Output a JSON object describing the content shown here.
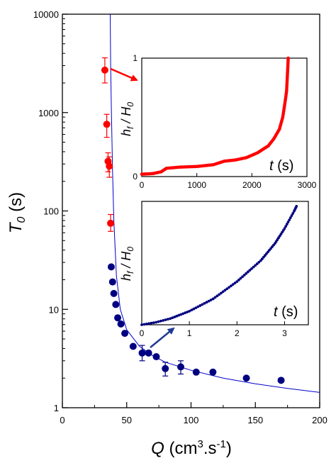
{
  "chart_data": [
    {
      "type": "scatter",
      "xlabel": {
        "main": "Q",
        "unit_pre": "(cm",
        "sup1": "3",
        "unit_mid": ".s",
        "sup2": "-1",
        "unit_post": ")"
      },
      "ylabel": {
        "main": "T",
        "sub": "0",
        "unit": "(s)"
      },
      "y_scale": "log",
      "xlim": [
        0,
        200
      ],
      "ylim": [
        1,
        10000
      ],
      "x_ticks": [
        "0",
        "50",
        "100",
        "150",
        "200"
      ],
      "y_ticks": [
        "1",
        "10",
        "100",
        "1000",
        "10000"
      ],
      "grid": false,
      "series": [
        {
          "color": "#ff0000",
          "points": [
            {
              "x": 33,
              "y": 2700,
              "err_lo": 2000,
              "err_hi": 3600
            },
            {
              "x": 34.5,
              "y": 760,
              "err_lo": 560,
              "err_hi": 960
            },
            {
              "x": 35.5,
              "y": 320,
              "err_lo": 250,
              "err_hi": 390
            },
            {
              "x": 36.5,
              "y": 285,
              "err_lo": 220,
              "err_hi": 355
            },
            {
              "x": 37.5,
              "y": 75,
              "err_lo": 62,
              "err_hi": 92
            }
          ]
        },
        {
          "color": "#000080",
          "points": [
            {
              "x": 38,
              "y": 27
            },
            {
              "x": 39,
              "y": 19
            },
            {
              "x": 40,
              "y": 14.5
            },
            {
              "x": 41.5,
              "y": 11.2
            },
            {
              "x": 43,
              "y": 8.2
            },
            {
              "x": 45.5,
              "y": 7.1
            },
            {
              "x": 48.5,
              "y": 5.7
            },
            {
              "x": 55,
              "y": 4.2
            },
            {
              "x": 62,
              "y": 3.6,
              "err_lo": 3.0,
              "err_hi": 4.3
            },
            {
              "x": 67,
              "y": 3.6
            },
            {
              "x": 73,
              "y": 3.3
            },
            {
              "x": 80,
              "y": 2.5,
              "err_lo": 2.1,
              "err_hi": 2.9
            },
            {
              "x": 92,
              "y": 2.6,
              "err_lo": 2.2,
              "err_hi": 3.0
            },
            {
              "x": 104,
              "y": 2.3
            },
            {
              "x": 117,
              "y": 2.3
            },
            {
              "x": 143,
              "y": 2.0
            },
            {
              "x": 170,
              "y": 1.9
            }
          ]
        }
      ],
      "fit_curve": {
        "color": "#0000cc",
        "points": [
          [
            37.2,
            10000
          ],
          [
            37.5,
            3000
          ],
          [
            38,
            1200
          ],
          [
            39,
            250
          ],
          [
            40,
            80
          ],
          [
            42,
            22
          ],
          [
            45,
            10
          ],
          [
            50,
            6.2
          ],
          [
            60,
            4.2
          ],
          [
            70,
            3.4
          ],
          [
            80,
            2.9
          ],
          [
            100,
            2.4
          ],
          [
            125,
            2.0
          ],
          [
            150,
            1.75
          ],
          [
            175,
            1.57
          ],
          [
            200,
            1.43
          ]
        ]
      }
    },
    {
      "type": "scatter",
      "ylabel": {
        "main": "h",
        "sub": "f",
        "mid": " / H",
        "sub2": "0"
      },
      "xlabel": {
        "main": "t",
        "unit": "(s)"
      },
      "xlim": [
        0,
        3000
      ],
      "ylim": [
        0,
        1
      ],
      "x_ticks": [
        "0",
        "1000",
        "2000",
        "3000"
      ],
      "y_ticks": [
        "0",
        "1"
      ],
      "color": "#ff0000",
      "curve": [
        [
          0,
          0.02
        ],
        [
          200,
          0.025
        ],
        [
          350,
          0.04
        ],
        [
          450,
          0.07
        ],
        [
          700,
          0.08
        ],
        [
          1000,
          0.085
        ],
        [
          1300,
          0.1
        ],
        [
          1500,
          0.13
        ],
        [
          1700,
          0.14
        ],
        [
          1900,
          0.16
        ],
        [
          2100,
          0.2
        ],
        [
          2200,
          0.23
        ],
        [
          2300,
          0.26
        ],
        [
          2400,
          0.32
        ],
        [
          2500,
          0.4
        ],
        [
          2560,
          0.5
        ],
        [
          2600,
          0.62
        ],
        [
          2630,
          0.72
        ],
        [
          2650,
          0.9
        ],
        [
          2660,
          1.0
        ]
      ]
    },
    {
      "type": "scatter",
      "ylabel": {
        "main": "h",
        "sub": "f",
        "mid": " / H",
        "sub2": "0"
      },
      "xlabel": {
        "main": "t",
        "unit": "(s)"
      },
      "xlim": [
        0,
        3.5
      ],
      "ylim": [
        0,
        1
      ],
      "x_ticks": [
        "0",
        "1",
        "2",
        "3"
      ],
      "color": "#000080",
      "curve": [
        [
          0,
          0
        ],
        [
          0.3,
          0.02
        ],
        [
          0.6,
          0.05
        ],
        [
          1.0,
          0.11
        ],
        [
          1.5,
          0.21
        ],
        [
          2.0,
          0.35
        ],
        [
          2.5,
          0.52
        ],
        [
          2.8,
          0.66
        ],
        [
          3.0,
          0.78
        ],
        [
          3.1,
          0.85
        ],
        [
          3.2,
          0.92
        ],
        [
          3.25,
          0.96
        ]
      ]
    }
  ]
}
